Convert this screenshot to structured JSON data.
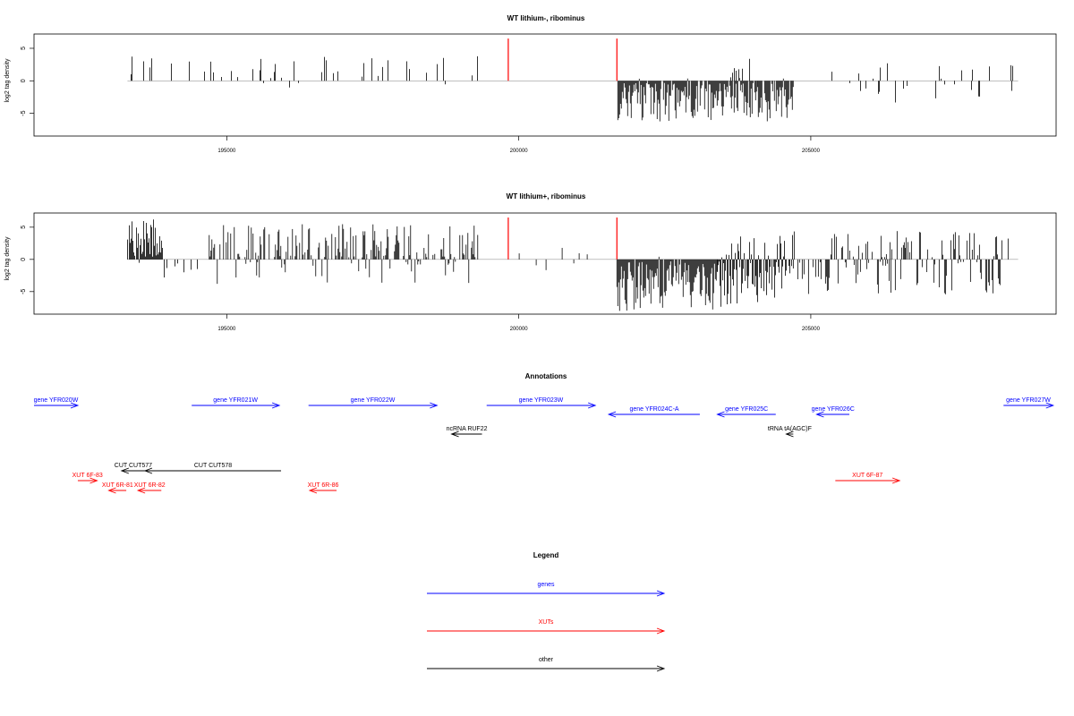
{
  "chart_data": [
    {
      "type": "bar",
      "title": "WT lithium-, ribominus",
      "xlabel": "",
      "ylabel": "log2 tag density",
      "xlim": [
        191700,
        209200
      ],
      "ylim": [
        -8.5,
        7.2
      ],
      "x_ticks": [
        195000,
        200000,
        205000
      ],
      "x_tick_labels": [
        "195000",
        "200000",
        "205000"
      ],
      "y_ticks": [
        5,
        0,
        -5
      ],
      "y_tick_labels": [
        "5",
        "0",
        "-5"
      ],
      "baseline": 0,
      "marker_color": "#ff0000",
      "bar_color": "#000000",
      "markers": [
        {
          "x": 199820,
          "y": 6.5
        },
        {
          "x": 201680,
          "y": 6.5
        }
      ],
      "regions": [
        {
          "start": 193300,
          "end": 199300,
          "density": 0.12,
          "pos_max": 3.8,
          "neg_max": -2.2,
          "pos_frac": 0.9
        },
        {
          "start": 200700,
          "end": 201300,
          "density": 0.02,
          "pos_max": 1.6,
          "neg_max": -0.5,
          "pos_frac": 1.0
        },
        {
          "start": 201680,
          "end": 204700,
          "density": 1.0,
          "pos_max": 0.5,
          "neg_max": -6.3,
          "pos_frac": 0.03
        },
        {
          "start": 203600,
          "end": 204200,
          "density": 0.25,
          "pos_max": 3.5,
          "neg_max": -1.0,
          "pos_frac": 0.7
        },
        {
          "start": 205300,
          "end": 208500,
          "density": 0.15,
          "pos_max": 2.8,
          "neg_max": -3.5,
          "pos_frac": 0.45
        }
      ],
      "seed": 7
    },
    {
      "type": "bar",
      "title": "WT lithium+, ribominus",
      "xlabel": "",
      "ylabel": "log2 tag density",
      "xlim": [
        191700,
        209200
      ],
      "ylim": [
        -8.5,
        7.2
      ],
      "x_ticks": [
        195000,
        200000,
        205000
      ],
      "x_tick_labels": [
        "195000",
        "200000",
        "205000"
      ],
      "y_ticks": [
        5,
        0,
        -5
      ],
      "y_tick_labels": [
        "5",
        "0",
        "-5"
      ],
      "baseline": 0,
      "marker_color": "#ff0000",
      "bar_color": "#000000",
      "markers": [
        {
          "x": 199820,
          "y": 6.5
        },
        {
          "x": 201680,
          "y": 6.5
        }
      ],
      "regions": [
        {
          "start": 193300,
          "end": 193900,
          "density": 1.0,
          "pos_max": 6.3,
          "neg_max": -1.5,
          "pos_frac": 0.95
        },
        {
          "start": 193900,
          "end": 194700,
          "density": 0.25,
          "pos_max": 1.5,
          "neg_max": -3.0,
          "pos_frac": 0.2
        },
        {
          "start": 194700,
          "end": 199300,
          "density": 0.6,
          "pos_max": 5.5,
          "neg_max": -4.0,
          "pos_frac": 0.8
        },
        {
          "start": 199900,
          "end": 201500,
          "density": 0.05,
          "pos_max": 3.0,
          "neg_max": -2.0,
          "pos_frac": 0.6
        },
        {
          "start": 201680,
          "end": 203400,
          "density": 1.0,
          "pos_max": 0.5,
          "neg_max": -8.0,
          "pos_frac": 0.02
        },
        {
          "start": 203400,
          "end": 204700,
          "density": 1.0,
          "pos_max": 3.8,
          "neg_max": -7.5,
          "pos_frac": 0.3
        },
        {
          "start": 204700,
          "end": 208400,
          "density": 0.55,
          "pos_max": 4.5,
          "neg_max": -5.5,
          "pos_frac": 0.45
        }
      ],
      "seed": 42
    }
  ],
  "annotations": {
    "title": "Annotations",
    "xlim": [
      191700,
      209200
    ],
    "colors": {
      "gene": "#0000ff",
      "xut": "#ff0000",
      "other": "#000000"
    },
    "features": [
      {
        "label": "gene YFR020W",
        "start": 191700,
        "end": 192450,
        "strand": "+",
        "kind": "gene",
        "row": 0
      },
      {
        "label": "gene YFR021W",
        "start": 194400,
        "end": 195900,
        "strand": "+",
        "kind": "gene",
        "row": 0
      },
      {
        "label": "gene YFR022W",
        "start": 196400,
        "end": 198600,
        "strand": "+",
        "kind": "gene",
        "row": 0
      },
      {
        "label": "gene YFR023W",
        "start": 199450,
        "end": 201310,
        "strand": "+",
        "kind": "gene",
        "row": 0
      },
      {
        "label": "gene YFR024C-A",
        "start": 201540,
        "end": 203100,
        "strand": "-",
        "kind": "gene",
        "row": 1
      },
      {
        "label": "gene YFR025C",
        "start": 203400,
        "end": 204400,
        "strand": "-",
        "kind": "gene",
        "row": 1
      },
      {
        "label": "gene YFR026C",
        "start": 205100,
        "end": 205660,
        "strand": "-",
        "kind": "gene",
        "row": 1
      },
      {
        "label": "gene YFR027W",
        "start": 208300,
        "end": 209150,
        "strand": "+",
        "kind": "gene",
        "row": 0
      },
      {
        "label": "ncRNA RUF22",
        "start": 198850,
        "end": 199370,
        "strand": "-",
        "kind": "other",
        "row": 2
      },
      {
        "label": "tRNA tA(AGC)F",
        "start": 204580,
        "end": 204700,
        "strand": "-",
        "kind": "other",
        "row": 2
      },
      {
        "label": "CUT CUT577",
        "start": 193200,
        "end": 193600,
        "strand": "-",
        "kind": "other",
        "row": 3
      },
      {
        "label": "CUT CUT578",
        "start": 193600,
        "end": 195930,
        "strand": "-",
        "kind": "other",
        "row": 3
      },
      {
        "label": "XUT 6F-83",
        "start": 192450,
        "end": 192780,
        "strand": "+",
        "kind": "xut",
        "row": 4
      },
      {
        "label": "XUT 6R-81",
        "start": 192980,
        "end": 193280,
        "strand": "-",
        "kind": "xut",
        "row": 5
      },
      {
        "label": "XUT 6R-82",
        "start": 193480,
        "end": 193880,
        "strand": "-",
        "kind": "xut",
        "row": 5
      },
      {
        "label": "XUT 6R-86",
        "start": 196420,
        "end": 196880,
        "strand": "-",
        "kind": "xut",
        "row": 5
      },
      {
        "label": "XUT 6F-87",
        "start": 205420,
        "end": 206520,
        "strand": "+",
        "kind": "xut",
        "row": 4
      }
    ]
  },
  "legend": {
    "title": "Legend",
    "items": [
      {
        "label": "genes",
        "kind": "gene"
      },
      {
        "label": "XUTs",
        "kind": "xut"
      },
      {
        "label": "other",
        "kind": "other"
      }
    ]
  }
}
